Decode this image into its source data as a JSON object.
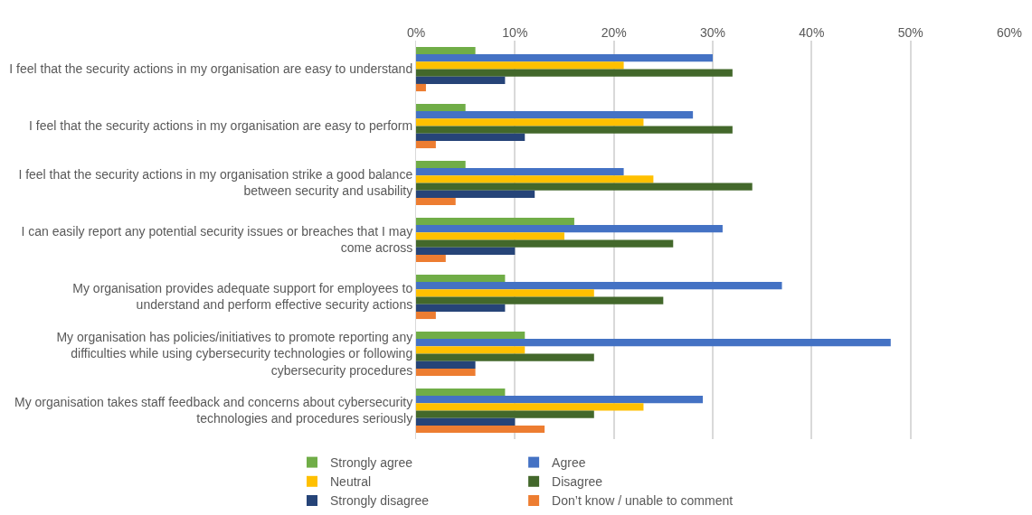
{
  "chart_data": {
    "type": "bar",
    "orientation": "horizontal",
    "categories": [
      "I feel that the security actions in my organisation are easy to understand",
      "I feel that the security actions in my organisation are easy to perform",
      "I feel that the security actions in my organisation strike a good balance\nbetween security and usability",
      "I can easily report any potential security issues or breaches that I may\ncome across",
      "My organisation provides adequate support for employees to\nunderstand and perform effective security actions",
      "My organisation has policies/initiatives to promote reporting any\ndifficulties while using cybersecurity technologies or following\ncybersecurity procedures",
      "My organisation takes staff feedback and concerns about cybersecurity\ntechnologies and procedures seriously"
    ],
    "series": [
      {
        "name": "Strongly agree",
        "color": "#70ad47",
        "values": [
          6,
          5,
          5,
          16,
          9,
          11,
          9
        ]
      },
      {
        "name": "Agree",
        "color": "#4472c4",
        "values": [
          30,
          28,
          21,
          31,
          37,
          48,
          29
        ]
      },
      {
        "name": "Neutral",
        "color": "#ffc000",
        "values": [
          21,
          23,
          24,
          15,
          18,
          11,
          23
        ]
      },
      {
        "name": "Disagree",
        "color": "#43682b",
        "values": [
          32,
          32,
          34,
          26,
          25,
          18,
          18
        ]
      },
      {
        "name": "Strongly disagree",
        "color": "#264478",
        "values": [
          9,
          11,
          12,
          10,
          9,
          6,
          10
        ]
      },
      {
        "name": "Don’t know / unable to comment",
        "color": "#ed7d31",
        "values": [
          1,
          2,
          4,
          3,
          2,
          6,
          13
        ]
      }
    ],
    "xlim": [
      0,
      60
    ],
    "xticks": [
      {
        "value": 0,
        "label": "0%"
      },
      {
        "value": 10,
        "label": "10%"
      },
      {
        "value": 20,
        "label": "20%"
      },
      {
        "value": 30,
        "label": "30%"
      },
      {
        "value": 40,
        "label": "40%"
      },
      {
        "value": 50,
        "label": "50%"
      },
      {
        "value": 60,
        "label": "60%"
      }
    ],
    "grid": "x",
    "legend": "bottom"
  }
}
